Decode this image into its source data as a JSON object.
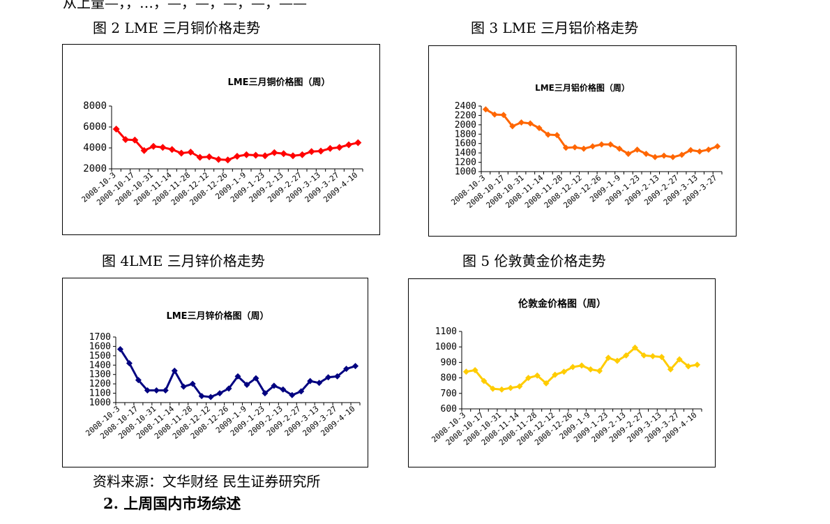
{
  "page": {
    "top_text": "从上量—，，…，—，—，—，—，——",
    "source": "资料来源：文华财经 民生证券研究所",
    "section_heading": "2. 上周国内市场综述"
  },
  "figures": [
    {
      "caption": "图 2   LME 三月铜价格走势"
    },
    {
      "caption": "图 3   LME 三月铝价格走势"
    },
    {
      "caption": "图 4LME 三月锌价格走势"
    },
    {
      "caption": "图 5   伦敦黄金价格走势"
    }
  ],
  "chart_data": [
    {
      "type": "line",
      "title": "LME三月铜价格图（周）",
      "xlabel": "",
      "ylabel": "",
      "ylim": [
        2000,
        8000
      ],
      "yticks": [
        "8000",
        "6000",
        "4000",
        "2000"
      ],
      "x_tick_labels": [
        "2008-10-3",
        "2008-10-17",
        "2008-10-31",
        "2008-11-14",
        "2008-11-28",
        "2008-12-12",
        "2008-12-26",
        "2009-1-9",
        "2009-1-23",
        "2009-2-13",
        "2009-2-27",
        "2009-3-13",
        "2009-3-27",
        "2009-4-10"
      ],
      "color": "#ff0000",
      "marker": "diamond",
      "series": [
        {
          "values": [
            5800,
            4800,
            4750,
            3750,
            4150,
            4050,
            3850,
            3500,
            3600,
            3100,
            3150,
            2900,
            2850,
            3200,
            3350,
            3300,
            3250,
            3550,
            3450,
            3250,
            3350,
            3650,
            3700,
            3950,
            4050,
            4300,
            4500
          ]
        }
      ]
    },
    {
      "type": "line",
      "title": "LME三月铝价格图（周）",
      "xlabel": "",
      "ylabel": "",
      "ylim": [
        1000,
        2400
      ],
      "yticks": [
        "2400",
        "2200",
        "2000",
        "1800",
        "1600",
        "1400",
        "1200",
        "1000"
      ],
      "x_tick_labels": [
        "2008-10-3",
        "2008-10-17",
        "2008-10-31",
        "2008-11-14",
        "2008-11-28",
        "2008-12-12",
        "2008-12-26",
        "2009-1-9",
        "2009-1-23",
        "2009-2-13",
        "2009-2-27",
        "2009-3-13",
        "2009-3-27"
      ],
      "color": "#ff6600",
      "marker": "diamond",
      "series": [
        {
          "values": [
            2330,
            2220,
            2210,
            1970,
            2050,
            2030,
            1930,
            1790,
            1780,
            1510,
            1520,
            1490,
            1540,
            1580,
            1580,
            1490,
            1380,
            1470,
            1380,
            1310,
            1340,
            1310,
            1360,
            1460,
            1430,
            1470,
            1540
          ]
        }
      ]
    },
    {
      "type": "line",
      "title": "LME三月锌价格图（周）",
      "xlabel": "",
      "ylabel": "",
      "ylim": [
        1000,
        1700
      ],
      "yticks": [
        "1700",
        "1600",
        "1500",
        "1400",
        "1300",
        "1200",
        "1100",
        "1000"
      ],
      "x_tick_labels": [
        "2008-10-3",
        "2008-10-17",
        "2008-10-31",
        "2008-11-14",
        "2008-11-28",
        "2008-12-12",
        "2008-12-26",
        "2009-1-9",
        "2009-1-23",
        "2009-2-13",
        "2009-2-27",
        "2009-3-13",
        "2009-3-27",
        "2009-4-10"
      ],
      "color": "#000080",
      "marker": "diamond",
      "series": [
        {
          "values": [
            1570,
            1420,
            1240,
            1130,
            1130,
            1130,
            1340,
            1170,
            1200,
            1070,
            1060,
            1100,
            1150,
            1280,
            1190,
            1260,
            1100,
            1180,
            1140,
            1080,
            1120,
            1230,
            1210,
            1270,
            1280,
            1360,
            1390
          ]
        }
      ]
    },
    {
      "type": "line",
      "title": "伦敦金价格图（周）",
      "xlabel": "",
      "ylabel": "",
      "ylim": [
        600,
        1100
      ],
      "yticks": [
        "1100",
        "1000",
        "900",
        "800",
        "700",
        "600"
      ],
      "x_tick_labels": [
        "2008-10-3",
        "2008-10-17",
        "2008-10-31",
        "2008-11-14",
        "2008-11-28",
        "2008-12-12",
        "2008-12-26",
        "2009-1-9",
        "2009-1-23",
        "2009-2-13",
        "2009-2-27",
        "2009-3-13",
        "2009-3-27",
        "2009-4-10"
      ],
      "color": "#ffcc00",
      "marker": "diamond",
      "series": [
        {
          "values": [
            840,
            850,
            780,
            730,
            725,
            735,
            745,
            800,
            815,
            765,
            820,
            840,
            870,
            880,
            855,
            845,
            930,
            910,
            945,
            995,
            945,
            940,
            935,
            855,
            920,
            875,
            885
          ]
        }
      ]
    }
  ]
}
